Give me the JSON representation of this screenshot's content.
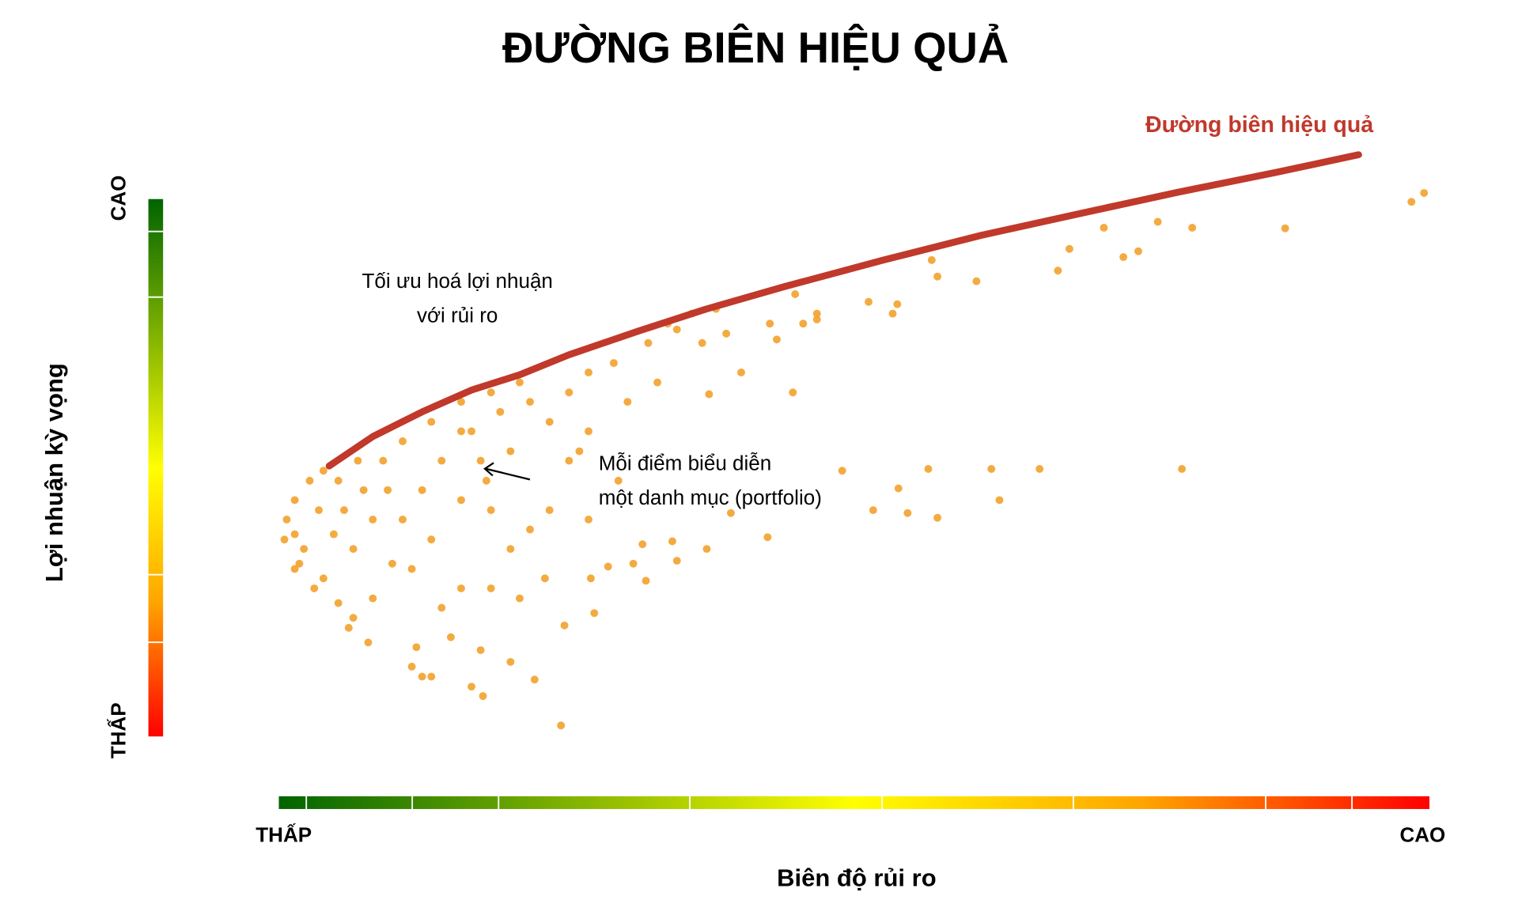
{
  "chart_data": {
    "type": "scatter",
    "title": "ĐƯỜNG BIÊN HIỆU QUẢ",
    "x_label": "Biên độ rủi ro",
    "y_label": "Lợi nhuận kỳ vọng",
    "x_low_label": "THẤP",
    "x_high_label": "CAO",
    "y_low_label": "THẤP",
    "y_high_label": "CAO",
    "xlim": [
      0,
      100
    ],
    "ylim": [
      0,
      100
    ],
    "annotations": [
      {
        "lines": [
          "Tối ưu hoá lợi nhuận",
          "với rủi ro"
        ]
      },
      {
        "lines": [
          "Mỗi điểm biểu diễn",
          "một danh mục (portfolio)"
        ]
      }
    ],
    "series": [
      {
        "name": "Đường biên hiệu quả",
        "type": "line",
        "color": "#c0392b",
        "x": [
          4.3,
          8.1,
          12.4,
          16.7,
          20.9,
          25.2,
          31.2,
          37.2,
          44.0,
          52.6,
          61.1,
          69.7,
          78.2,
          86.8,
          94.0
        ],
        "values": [
          45.8,
          50.8,
          55,
          58.7,
          61.3,
          64.7,
          68.7,
          72.5,
          76.3,
          80.8,
          85,
          88.7,
          92.3,
          95.7,
          98.7
        ]
      },
      {
        "type": "scatter",
        "color": "#f2a22c",
        "x": [
          99.7,
          98.6,
          87.6,
          79.5,
          76.5,
          71.8,
          74.8,
          73.5,
          68.8,
          67.8,
          60.7,
          57.3,
          56.8,
          53.8,
          53.4,
          51.3,
          46.8,
          45.6,
          43.3,
          44.7,
          40.2,
          37.4,
          78.6,
          66.2,
          62,
          62.7,
          56.5,
          57.3,
          54.7,
          53.9,
          51.7,
          49,
          42.5,
          39.3,
          37.2,
          34.6,
          34.2,
          31.6,
          31.9,
          30.8,
          28.6,
          27.1,
          27.4,
          24.8,
          24.5,
          22.2,
          20.1,
          17.7,
          16.7,
          17.5,
          13.2,
          11.9,
          11.5,
          7.7,
          6,
          3,
          1.3,
          0.4,
          0.6,
          1.3,
          2.6,
          3.8,
          2.1,
          3.8,
          5.1,
          6.4,
          8.1,
          9.8,
          10.7,
          12.4,
          14.1,
          15.8,
          17.5,
          18.4,
          20.1,
          21.8,
          15.8,
          14.1,
          18.4,
          20.9,
          23.1,
          23.5,
          21.8,
          25.2,
          26.9,
          29.1,
          32.1,
          34.6,
          36.8,
          38.9,
          32.9,
          30.3,
          26.9,
          26.1,
          20.1,
          18,
          15.8,
          13.2,
          11.5,
          6.4,
          5.6,
          7.3,
          9,
          10.7,
          13.2,
          15.8,
          18.4,
          20.9,
          19.2,
          16.7,
          4.7,
          3.4,
          5.1,
          6.8,
          9.4,
          8.1,
          1.3,
          1.7,
          25.2,
          23.5,
          26.9,
          29.5,
          33.8,
          35.9,
          38,
          44.9,
          46.8,
          42.7,
          14.9,
          12.4
        ],
        "values": [
          92.2,
          90.7,
          86.2,
          86.3,
          87.3,
          86.3,
          82.3,
          81.3,
          82.7,
          79,
          77.2,
          78,
          80.8,
          73.3,
          71.7,
          73.7,
          70.7,
          70,
          67.3,
          58.3,
          61.7,
          58,
          45.3,
          45.3,
          45.3,
          40,
          45.3,
          37,
          37.8,
          42,
          38.3,
          45,
          33.7,
          37.8,
          31.7,
          29.7,
          33,
          32.5,
          26.3,
          29.2,
          28.7,
          26.7,
          20.8,
          18.7,
          1.7,
          9.5,
          12.5,
          6.7,
          8.3,
          14.5,
          10,
          15,
          11.7,
          15.8,
          18.3,
          25,
          28.3,
          33.3,
          36.7,
          40,
          43.3,
          45,
          31.7,
          26.7,
          22.5,
          20,
          23.3,
          29.2,
          36.7,
          41.7,
          46.7,
          51.7,
          46.7,
          38.3,
          31.7,
          35,
          25,
          21.7,
          25,
          23.3,
          26.7,
          53.3,
          56.7,
          58.3,
          61.7,
          63.3,
          66.7,
          69,
          66.7,
          68.3,
          60,
          56.7,
          51.7,
          48.3,
          48.3,
          43.3,
          40,
          33.3,
          28.3,
          31.7,
          38.3,
          41.7,
          46.7,
          50,
          53.3,
          56.7,
          58.3,
          60,
          55,
          51.7,
          34.2,
          38.3,
          43.3,
          46.7,
          41.7,
          36.7,
          34.2,
          29.2,
          46.7,
          38.3,
          36.7,
          43.3,
          70,
          71.7,
          72.5,
          75,
          71.7,
          70,
          16.7,
          10
        ]
      }
    ]
  }
}
